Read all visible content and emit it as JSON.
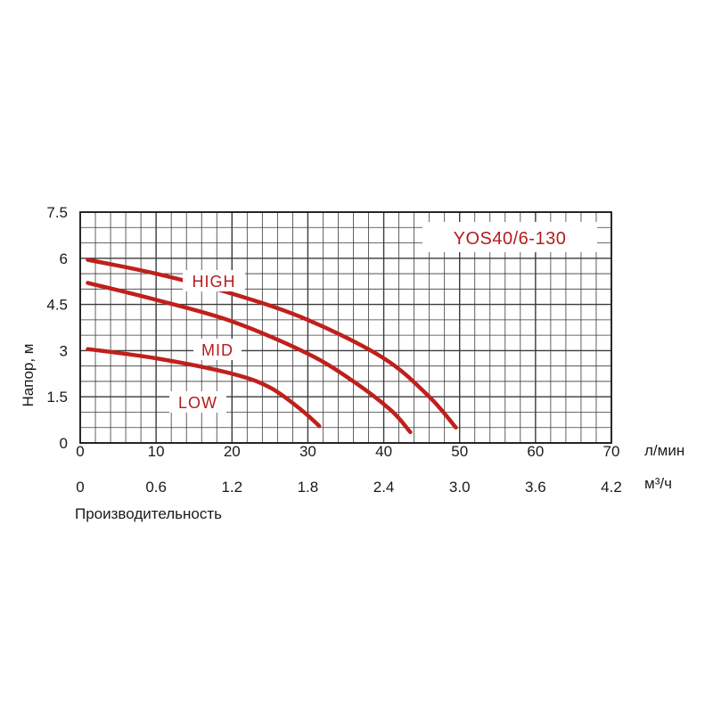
{
  "chart_data": {
    "type": "line",
    "title": "YOS40/6-130",
    "ylabel": "Напор, м",
    "xlabel": "Производительность",
    "x_unit_primary": "л/мин",
    "x_unit_secondary": "м³/ч",
    "xlim": [
      0,
      70
    ],
    "ylim": [
      0,
      7.5
    ],
    "grid": true,
    "y_ticks": [
      "0",
      "1.5",
      "3",
      "4.5",
      "6",
      "7.5"
    ],
    "x_ticks_primary": [
      "0",
      "10",
      "20",
      "30",
      "40",
      "50",
      "60",
      "70"
    ],
    "x_ticks_secondary": [
      "0",
      "0.6",
      "1.2",
      "1.8",
      "2.4",
      "3.0",
      "3.6",
      "4.2"
    ],
    "colors": {
      "series": "#c0201c",
      "label": "#b51c1c",
      "grid": "#3a3a3a",
      "axis": "#1a1a1a"
    },
    "series": [
      {
        "name": "HIGH",
        "points": [
          [
            1,
            5.95
          ],
          [
            10,
            5.5
          ],
          [
            20,
            4.85
          ],
          [
            30,
            4.0
          ],
          [
            40,
            2.75
          ],
          [
            46,
            1.5
          ],
          [
            49.5,
            0.5
          ]
        ]
      },
      {
        "name": "MID",
        "points": [
          [
            1,
            5.2
          ],
          [
            10,
            4.65
          ],
          [
            20,
            3.95
          ],
          [
            30,
            2.9
          ],
          [
            36,
            2.0
          ],
          [
            41,
            1.05
          ],
          [
            43.5,
            0.35
          ]
        ]
      },
      {
        "name": "LOW",
        "points": [
          [
            1,
            3.05
          ],
          [
            10,
            2.75
          ],
          [
            20,
            2.25
          ],
          [
            25,
            1.8
          ],
          [
            29,
            1.1
          ],
          [
            31.5,
            0.55
          ]
        ]
      }
    ]
  }
}
